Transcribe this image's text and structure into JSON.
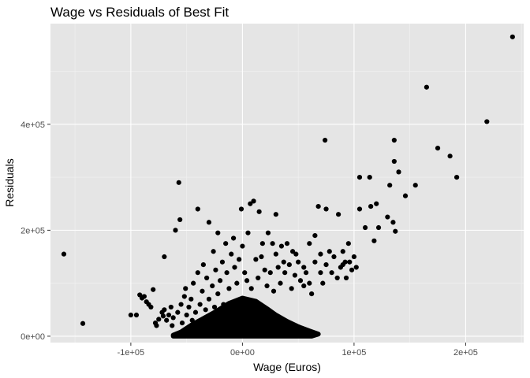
{
  "chart_data": {
    "type": "scatter",
    "title": "Wage vs Residuals of Best Fit",
    "xlabel": "Wage (Euros)",
    "ylabel": "Residuals",
    "xlim": [
      -172000,
      252000
    ],
    "ylim": [
      -12000,
      590000
    ],
    "x_ticks": [
      {
        "value": -100000,
        "label": "-1e+05"
      },
      {
        "value": 0,
        "label": "0e+00"
      },
      {
        "value": 100000,
        "label": "1e+05"
      },
      {
        "value": 200000,
        "label": "2e+05"
      }
    ],
    "y_ticks": [
      {
        "value": 0,
        "label": "0e+00"
      },
      {
        "value": 200000,
        "label": "2e+05"
      },
      {
        "value": 400000,
        "label": "4e+05"
      }
    ],
    "grid": true,
    "panel_color": "#e5e5e5",
    "grid_major_color": "#ffffff",
    "grid_minor_color": "#f2f2f2",
    "point_color": "#000000",
    "series": [
      {
        "points": [
          [
            -160000,
            155000
          ],
          [
            -143000,
            24000
          ],
          [
            -100000,
            40000
          ],
          [
            -95000,
            40000
          ],
          [
            -92000,
            78000
          ],
          [
            -90000,
            72000
          ],
          [
            -88000,
            75000
          ],
          [
            -86000,
            65000
          ],
          [
            -84000,
            60000
          ],
          [
            -82000,
            55000
          ],
          [
            -80000,
            88000
          ],
          [
            -78000,
            25000
          ],
          [
            -77000,
            20000
          ],
          [
            -75000,
            32000
          ],
          [
            -72000,
            45000
          ],
          [
            -71000,
            38000
          ],
          [
            -70000,
            50000
          ],
          [
            -70000,
            150000
          ],
          [
            -68000,
            30000
          ],
          [
            -66000,
            40000
          ],
          [
            -64000,
            55000
          ],
          [
            -63000,
            20000
          ],
          [
            -62000,
            35000
          ],
          [
            -60000,
            200000
          ],
          [
            -58000,
            45000
          ],
          [
            -57000,
            290000
          ],
          [
            -56000,
            220000
          ],
          [
            -55000,
            60000
          ],
          [
            -54000,
            25000
          ],
          [
            -52000,
            75000
          ],
          [
            -51000,
            90000
          ],
          [
            -50000,
            40000
          ],
          [
            -48000,
            55000
          ],
          [
            -47000,
            15000
          ],
          [
            -46000,
            70000
          ],
          [
            -45000,
            30000
          ],
          [
            -44000,
            100000
          ],
          [
            -42000,
            45000
          ],
          [
            -40000,
            240000
          ],
          [
            -40000,
            120000
          ],
          [
            -38000,
            60000
          ],
          [
            -37000,
            20000
          ],
          [
            -36000,
            85000
          ],
          [
            -35000,
            135000
          ],
          [
            -33000,
            50000
          ],
          [
            -32000,
            110000
          ],
          [
            -30000,
            215000
          ],
          [
            -30000,
            70000
          ],
          [
            -28000,
            40000
          ],
          [
            -27000,
            95000
          ],
          [
            -26000,
            160000
          ],
          [
            -25000,
            55000
          ],
          [
            -24000,
            125000
          ],
          [
            -22000,
            195000
          ],
          [
            -22000,
            80000
          ],
          [
            -20000,
            105000
          ],
          [
            -18000,
            140000
          ],
          [
            -17000,
            60000
          ],
          [
            -15000,
            175000
          ],
          [
            -14000,
            120000
          ],
          [
            -12000,
            90000
          ],
          [
            -10000,
            155000
          ],
          [
            -8000,
            185000
          ],
          [
            -7000,
            130000
          ],
          [
            -5000,
            100000
          ],
          [
            -3000,
            145000
          ],
          [
            -1000,
            240000
          ],
          [
            0,
            170000
          ],
          [
            2000,
            120000
          ],
          [
            4000,
            105000
          ],
          [
            5000,
            195000
          ],
          [
            7000,
            250000
          ],
          [
            8000,
            90000
          ],
          [
            10000,
            255000
          ],
          [
            12000,
            145000
          ],
          [
            14000,
            110000
          ],
          [
            15000,
            235000
          ],
          [
            17000,
            150000
          ],
          [
            18000,
            175000
          ],
          [
            20000,
            125000
          ],
          [
            22000,
            95000
          ],
          [
            23000,
            195000
          ],
          [
            25000,
            120000
          ],
          [
            27000,
            175000
          ],
          [
            28000,
            85000
          ],
          [
            30000,
            155000
          ],
          [
            30000,
            230000
          ],
          [
            32000,
            130000
          ],
          [
            34000,
            100000
          ],
          [
            35000,
            170000
          ],
          [
            37000,
            140000
          ],
          [
            38000,
            120000
          ],
          [
            40000,
            175000
          ],
          [
            42000,
            135000
          ],
          [
            44000,
            90000
          ],
          [
            45000,
            160000
          ],
          [
            47000,
            115000
          ],
          [
            48000,
            155000
          ],
          [
            50000,
            140000
          ],
          [
            52000,
            105000
          ],
          [
            55000,
            95000
          ],
          [
            55000,
            130000
          ],
          [
            57000,
            120000
          ],
          [
            60000,
            175000
          ],
          [
            60000,
            100000
          ],
          [
            62000,
            80000
          ],
          [
            65000,
            140000
          ],
          [
            65000,
            190000
          ],
          [
            68000,
            245000
          ],
          [
            70000,
            120000
          ],
          [
            70000,
            155000
          ],
          [
            72000,
            100000
          ],
          [
            74000,
            370000
          ],
          [
            75000,
            240000
          ],
          [
            75000,
            135000
          ],
          [
            78000,
            160000
          ],
          [
            80000,
            120000
          ],
          [
            82000,
            150000
          ],
          [
            85000,
            110000
          ],
          [
            86000,
            230000
          ],
          [
            88000,
            130000
          ],
          [
            90000,
            135000
          ],
          [
            90000,
            160000
          ],
          [
            92000,
            140000
          ],
          [
            93000,
            110000
          ],
          [
            95000,
            175000
          ],
          [
            96000,
            140000
          ],
          [
            98000,
            125000
          ],
          [
            100000,
            150000
          ],
          [
            102000,
            130000
          ],
          [
            105000,
            300000
          ],
          [
            105000,
            240000
          ],
          [
            110000,
            205000
          ],
          [
            114000,
            300000
          ],
          [
            115000,
            245000
          ],
          [
            118000,
            180000
          ],
          [
            120000,
            250000
          ],
          [
            122000,
            205000
          ],
          [
            130000,
            225000
          ],
          [
            132000,
            285000
          ],
          [
            135000,
            215000
          ],
          [
            136000,
            370000
          ],
          [
            136000,
            330000
          ],
          [
            137000,
            198000
          ],
          [
            140000,
            310000
          ],
          [
            146000,
            265000
          ],
          [
            155000,
            285000
          ],
          [
            165000,
            470000
          ],
          [
            175000,
            355000
          ],
          [
            186000,
            340000
          ],
          [
            192000,
            300000
          ],
          [
            219000,
            405000
          ],
          [
            242000,
            565000
          ]
        ]
      }
    ]
  }
}
